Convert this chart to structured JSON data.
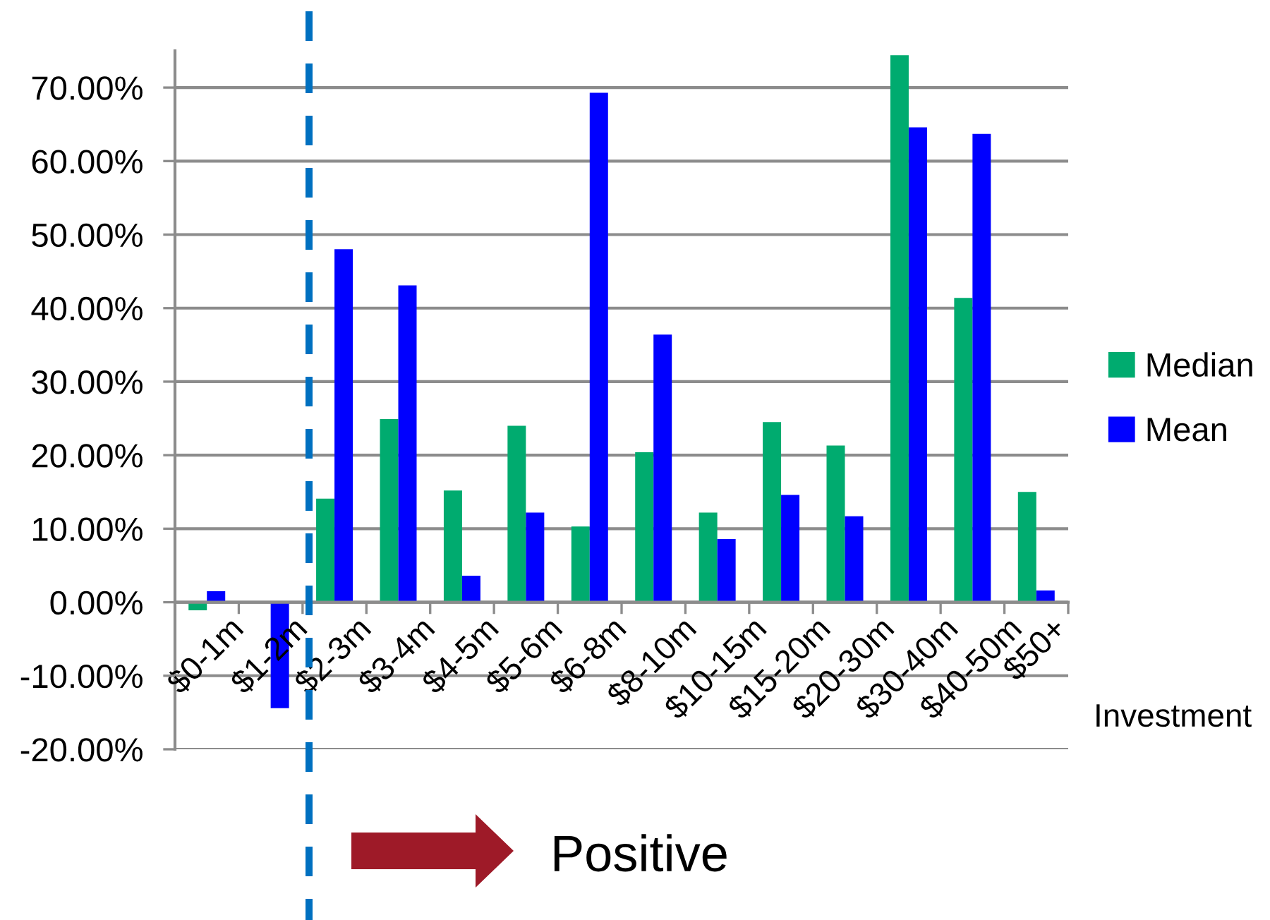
{
  "chart_data": {
    "type": "bar",
    "xlabel": "Investment",
    "categories": [
      "$0-1m",
      "$1-2m",
      "$2-3m",
      "$3-4m",
      "$4-5m",
      "$5-6m",
      "$6-8m",
      "$8-10m",
      "$10-15m",
      "$15-20m",
      "$20-30m",
      "$30-40m",
      "$40-50m",
      "$50+"
    ],
    "series": [
      {
        "name": "Median",
        "color": "#00ab6f",
        "values": [
          -1.1,
          null,
          14.1,
          24.9,
          15.2,
          24.0,
          10.3,
          20.4,
          12.2,
          24.5,
          21.3,
          74.4,
          41.4,
          15.0
        ]
      },
      {
        "name": "Mean",
        "color": "#0000ff",
        "values": [
          1.5,
          -14.4,
          48.0,
          43.1,
          3.6,
          12.2,
          69.3,
          36.4,
          8.6,
          14.6,
          11.7,
          64.6,
          63.7,
          1.6
        ]
      }
    ],
    "ylim": [
      -20,
      75
    ],
    "yticks": [
      {
        "value": -20,
        "label": "-20.00%"
      },
      {
        "value": -10,
        "label": "-10.00%"
      },
      {
        "value": 0,
        "label": "0.00%"
      },
      {
        "value": 10,
        "label": "10.00%"
      },
      {
        "value": 20,
        "label": "20.00%"
      },
      {
        "value": 30,
        "label": "30.00%"
      },
      {
        "value": 40,
        "label": "40.00%"
      },
      {
        "value": 50,
        "label": "50.00%"
      },
      {
        "value": 60,
        "label": "60.00%"
      },
      {
        "value": 70,
        "label": "70.00%"
      }
    ],
    "grid": "y",
    "legend": "right",
    "annotations": [
      "Positive"
    ]
  }
}
